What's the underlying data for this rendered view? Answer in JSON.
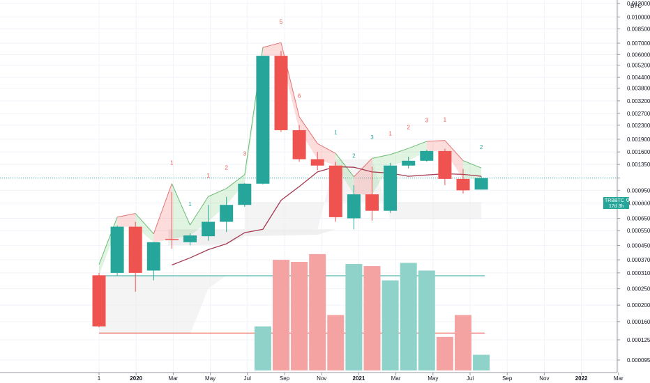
{
  "chart_data": {
    "type": "candlestick",
    "symbol": "TRBBTC",
    "quote_unit": "BTC",
    "last_price": "0.001122",
    "bar_countdown": "17d 3h",
    "y_scale": "log",
    "y_ticks": [
      "0.012000",
      "0.010000",
      "0.008500",
      "0.007000",
      "0.006000",
      "0.005200",
      "0.004400",
      "0.003800",
      "0.003200",
      "0.002700",
      "0.002300",
      "0.001900",
      "0.001600",
      "0.001350",
      "0.001122",
      "0.000950",
      "0.000800",
      "0.000650",
      "0.000550",
      "0.000450",
      "0.000370",
      "0.000310",
      "0.000250",
      "0.000200",
      "0.000160",
      "0.000125",
      "0.000095"
    ],
    "x_ticks": [
      {
        "label": "1",
        "slot": 0
      },
      {
        "label": "2020",
        "slot": 1
      },
      {
        "label": "Mar",
        "slot": 2
      },
      {
        "label": "May",
        "slot": 3
      },
      {
        "label": "Jul",
        "slot": 4
      },
      {
        "label": "Sep",
        "slot": 5
      },
      {
        "label": "Nov",
        "slot": 6
      },
      {
        "label": "2021",
        "slot": 7
      },
      {
        "label": "Mar",
        "slot": 8
      },
      {
        "label": "May",
        "slot": 9
      },
      {
        "label": "Jul",
        "slot": 10
      },
      {
        "label": "Sep",
        "slot": 11
      },
      {
        "label": "Nov",
        "slot": 12
      },
      {
        "label": "2022",
        "slot": 13
      },
      {
        "label": "Mar",
        "slot": 14
      }
    ],
    "candles": [
      {
        "o": 0.0003,
        "h": 0.00031,
        "l": 0.000148,
        "c": 0.00015
      },
      {
        "o": 0.00031,
        "h": 0.00059,
        "l": 0.0003,
        "c": 0.00058
      },
      {
        "o": 0.00058,
        "h": 0.00062,
        "l": 0.00024,
        "c": 0.00031
      },
      {
        "o": 0.00032,
        "h": 0.00047,
        "l": 0.00028,
        "c": 0.00047
      },
      {
        "o": 0.00049,
        "h": 0.00093,
        "l": 0.00043,
        "c": 0.000485
      },
      {
        "o": 0.00047,
        "h": 0.00053,
        "l": 0.00045,
        "c": 0.000515
      },
      {
        "o": 0.00051,
        "h": 0.00078,
        "l": 0.00048,
        "c": 0.00062
      },
      {
        "o": 0.00062,
        "h": 0.00087,
        "l": 0.00054,
        "c": 0.00078
      },
      {
        "o": 0.00078,
        "h": 0.00105,
        "l": 0.00076,
        "c": 0.00104
      },
      {
        "o": 0.00104,
        "h": 0.0059,
        "l": 0.00103,
        "c": 0.0059
      },
      {
        "o": 0.0059,
        "h": 0.0063,
        "l": 0.0021,
        "c": 0.00215
      },
      {
        "o": 0.00215,
        "h": 0.0023,
        "l": 0.0014,
        "c": 0.00145
      },
      {
        "o": 0.00145,
        "h": 0.0016,
        "l": 0.00125,
        "c": 0.00133
      },
      {
        "o": 0.00133,
        "h": 0.0014,
        "l": 0.00062,
        "c": 0.00066
      },
      {
        "o": 0.00065,
        "h": 0.00102,
        "l": 0.00056,
        "c": 0.0009
      },
      {
        "o": 0.0009,
        "h": 0.00131,
        "l": 0.00063,
        "c": 0.00072
      },
      {
        "o": 0.00072,
        "h": 0.00138,
        "l": 0.0007,
        "c": 0.00133
      },
      {
        "o": 0.00133,
        "h": 0.0015,
        "l": 0.00128,
        "c": 0.00142
      },
      {
        "o": 0.00142,
        "h": 0.00165,
        "l": 0.0014,
        "c": 0.00162
      },
      {
        "o": 0.00162,
        "h": 0.00167,
        "l": 0.00102,
        "c": 0.00111
      },
      {
        "o": 0.00111,
        "h": 0.00127,
        "l": 0.00091,
        "c": 0.00095
      },
      {
        "o": 0.00096,
        "h": 0.00115,
        "l": 0.00096,
        "c": 0.001122
      }
    ],
    "sma": [
      null,
      null,
      null,
      null,
      0.000345,
      0.00038,
      0.000425,
      0.00046,
      0.000535,
      0.00056,
      0.00083,
      0.001,
      0.00122,
      0.00131,
      0.0013,
      0.00122,
      0.0012,
      0.00115,
      0.00117,
      0.00119,
      0.00118,
      0.00115
    ],
    "sequential_counts": [
      {
        "i": 4,
        "n": "1",
        "color": "#ef5350"
      },
      {
        "i": 5,
        "n": "1",
        "color": "#26a69a"
      },
      {
        "i": 6,
        "n": "1",
        "color": "#ef5350"
      },
      {
        "i": 7,
        "n": "2",
        "color": "#ef5350"
      },
      {
        "i": 8,
        "n": "3",
        "color": "#ef5350"
      },
      {
        "i": 10,
        "n": "5",
        "color": "#ef5350"
      },
      {
        "i": 11,
        "n": "6",
        "color": "#ef5350"
      },
      {
        "i": 13,
        "n": "1",
        "color": "#26a69a"
      },
      {
        "i": 14,
        "n": "2",
        "color": "#26a69a"
      },
      {
        "i": 15,
        "n": "3",
        "color": "#26a69a"
      },
      {
        "i": 16,
        "n": "1",
        "color": "#ef5350"
      },
      {
        "i": 17,
        "n": "2",
        "color": "#ef5350"
      },
      {
        "i": 18,
        "n": "3",
        "color": "#ef5350"
      },
      {
        "i": 19,
        "n": "1",
        "color": "#ef5350"
      },
      {
        "i": 21,
        "n": "2",
        "color": "#26a69a"
      }
    ],
    "volume": [
      null,
      null,
      null,
      null,
      null,
      null,
      null,
      null,
      null,
      0.15,
      0.37,
      0.36,
      0.4,
      0.175,
      0.35,
      0.34,
      0.28,
      0.355,
      0.32,
      0.13,
      0.175,
      0.102
    ],
    "colors": {
      "up": "#26a69a",
      "down": "#ef5350",
      "sma": "#a53a52",
      "axis_label_bg": "#26a69a",
      "volume_up": "#8ed2c9",
      "volume_down": "#f4a2a2"
    }
  }
}
